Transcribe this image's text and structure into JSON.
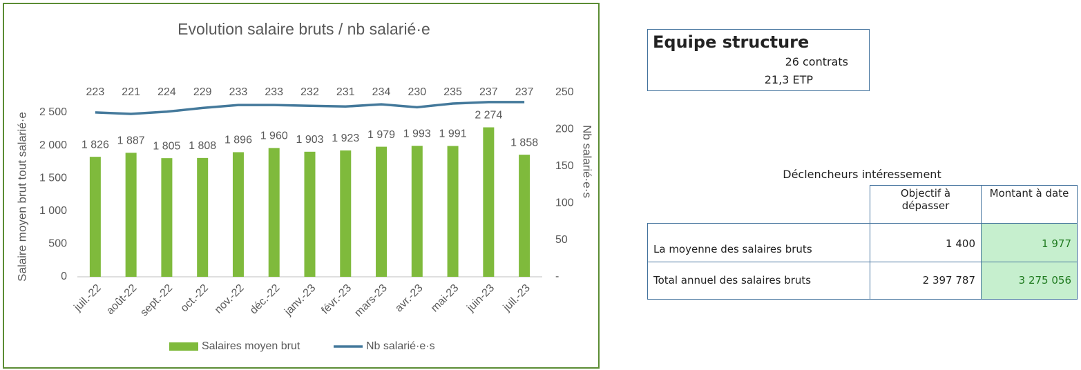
{
  "chart_data": {
    "type": "bar-line",
    "title": "Evolution salaire bruts / nb salarié·e",
    "y_label": "Salaire moyen brut tout salarié·e",
    "y2_label": "Nb salarié·e·s",
    "categories": [
      "juil.-22",
      "août-22",
      "sept.-22",
      "oct.-22",
      "nov.-22",
      "déc.-22",
      "janv.-23",
      "févr.-23",
      "mars-23",
      "avr.-23",
      "mai-23",
      "juin-23",
      "juil.-23"
    ],
    "series": [
      {
        "name": "Salaires moyen brut",
        "type": "bar",
        "color": "#7fba3c",
        "values": [
          1826,
          1887,
          1805,
          1808,
          1896,
          1960,
          1903,
          1923,
          1979,
          1993,
          1991,
          2274,
          1858
        ],
        "value_labels": [
          "1 826",
          "1 887",
          "1 805",
          "1 808",
          "1 896",
          "1 960",
          "1 903",
          "1 923",
          "1 979",
          "1 993",
          "1 991",
          "2 274",
          "1 858"
        ]
      },
      {
        "name": "Nb salarié·e·s",
        "type": "line",
        "axis": "y2",
        "color": "#44799b",
        "values": [
          223,
          221,
          224,
          229,
          233,
          233,
          232,
          231,
          234,
          230,
          235,
          237,
          237
        ]
      }
    ],
    "ylim": [
      0,
      2800
    ],
    "yticks": [
      0,
      {
        "value": 500,
        "label": "500"
      },
      {
        "value": 1000,
        "label": "1 000"
      },
      {
        "value": 1500,
        "label": "1 500"
      },
      {
        "value": 2000,
        "label": "2 000"
      },
      {
        "value": 2500,
        "label": "2 500"
      }
    ],
    "y2lim": [
      0,
      250
    ],
    "y2ticks": [
      {
        "value": 0,
        "label": "-"
      },
      50,
      100,
      150,
      200,
      250
    ],
    "y2label_text": null
  },
  "equipe": {
    "title": "Equipe structure",
    "contrats": "26 contrats",
    "etp": "21,3 ETP"
  },
  "table": {
    "title": "Déclencheurs intéressement",
    "columns": [
      "Objectif à dépasser",
      "Montant à date"
    ],
    "rows": [
      [
        "La moyenne des salaires bruts",
        "1 400",
        "1 977"
      ],
      [
        "Total annuel des salaires bruts",
        "2 397 787",
        "3 275 056"
      ]
    ]
  }
}
